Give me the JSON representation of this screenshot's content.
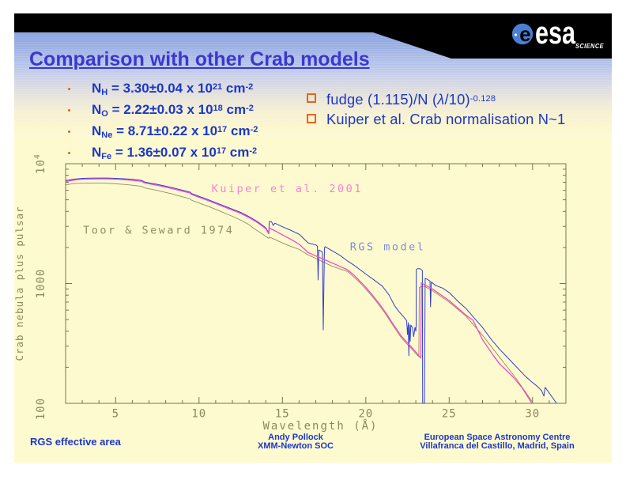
{
  "slide": {
    "title": "Comparison with other Crab models",
    "logo": {
      "wordmark": "esa",
      "globe_letter": "e",
      "tagline": "SCIENCE"
    },
    "bullets": [
      {
        "sym": "N",
        "sub": "H",
        "mid": " = 3.30±0.04 x 10",
        "exp": "21",
        "unit": " cm",
        "uexp": "-2"
      },
      {
        "sym": "N",
        "sub": "O",
        "mid": " = 2.22±0.03 x 10",
        "exp": "18",
        "unit": " cm",
        "uexp": "-2"
      },
      {
        "sym": "N",
        "sub": "Ne",
        "mid": " = 8.71±0.22 x 10",
        "exp": "17",
        "unit": " cm",
        "uexp": "-2"
      },
      {
        "sym": "N",
        "sub": "Fe",
        "mid": " = 1.36±0.07 x 10",
        "exp": "17",
        "unit": " cm",
        "uexp": "-2"
      }
    ],
    "checklist": [
      {
        "pre": "fudge (1.115)/N (",
        "lambda": "λ",
        "post": "/10)",
        "sup": "-0.128"
      },
      {
        "pre": "Kuiper et al. Crab normalisation N~1",
        "lambda": "",
        "post": "",
        "sup": ""
      }
    ],
    "footer": {
      "left": "RGS effective area",
      "center_line1": "Andy Pollock",
      "center_line2": "XMM-Newton SOC",
      "right_line1": "European Space Astronomy Centre",
      "right_line2": "Villafranca del Castillo, Madrid, Spain"
    },
    "colors": {
      "title": "#3b38d0",
      "body_text": "#1c38c6",
      "orange": "#e8651a",
      "cream": "#fefacf",
      "gradient_top": "#8ea7e3",
      "black_band": "#000000"
    }
  },
  "chart_data": {
    "type": "line",
    "title": "",
    "xlabel": "Wavelength (Å)",
    "ylabel": "Crab nebula plus pulsar",
    "x_range": [
      2,
      32
    ],
    "y_range": [
      100,
      10000
    ],
    "y_scale": "log",
    "x_ticks_major": [
      5,
      10,
      15,
      20,
      25,
      30
    ],
    "x_minor_step": 1,
    "y_ticks_major": [
      100,
      1000,
      10000
    ],
    "y_tick_labels": [
      "100",
      "1000",
      "10⁴"
    ],
    "axis_color": "#75754d",
    "text_color": "#8a8a58",
    "legend_position": "inline-labels",
    "grid": false,
    "series": [
      {
        "name": "Toor & Seward 1974",
        "z": 1,
        "color": "#8f8f5f",
        "label_color": "#8f8f5f",
        "label_pos": [
          3.05,
          2600
        ],
        "width": 0.9,
        "points": [
          [
            2.0,
            6650
          ],
          [
            2.5,
            6850
          ],
          [
            3.0,
            6870
          ],
          [
            3.5,
            6900
          ],
          [
            4.0,
            6900
          ],
          [
            4.5,
            6870
          ],
          [
            5.0,
            6800
          ],
          [
            5.5,
            6720
          ],
          [
            6.0,
            6620
          ],
          [
            6.55,
            6480
          ],
          [
            6.75,
            6280
          ],
          [
            7.0,
            6180
          ],
          [
            7.5,
            5980
          ],
          [
            8.0,
            5760
          ],
          [
            8.5,
            5540
          ],
          [
            9.0,
            5300
          ],
          [
            9.45,
            5100
          ],
          [
            9.55,
            4960
          ],
          [
            10.0,
            4700
          ],
          [
            10.5,
            4430
          ],
          [
            11.0,
            4160
          ],
          [
            12.0,
            3640
          ],
          [
            12.5,
            3380
          ],
          [
            13.0,
            3100
          ],
          [
            13.23,
            2920
          ],
          [
            13.5,
            2760
          ],
          [
            14.0,
            2480
          ],
          [
            14.18,
            2380
          ],
          [
            14.22,
            2440
          ],
          [
            14.5,
            2350
          ],
          [
            15.0,
            2180
          ],
          [
            15.5,
            2040
          ],
          [
            16.0,
            1930
          ],
          [
            16.55,
            1730
          ],
          [
            17.0,
            1620
          ],
          [
            17.5,
            1500
          ],
          [
            18.0,
            1390
          ],
          [
            18.91,
            1260
          ],
          [
            19.3,
            1130
          ],
          [
            19.7,
            1000
          ],
          [
            20.0,
            900
          ],
          [
            20.4,
            775
          ],
          [
            20.8,
            660
          ],
          [
            21.2,
            553
          ],
          [
            21.5,
            475
          ],
          [
            21.8,
            412
          ],
          [
            22.1,
            357
          ],
          [
            22.4,
            320
          ],
          [
            22.7,
            290
          ],
          [
            23.0,
            260
          ],
          [
            23.18,
            245
          ],
          [
            23.21,
            930
          ],
          [
            23.5,
            950
          ],
          [
            24.0,
            870
          ],
          [
            25.0,
            700
          ],
          [
            26.0,
            535
          ],
          [
            27.0,
            370
          ],
          [
            28.0,
            245
          ],
          [
            29.0,
            162
          ],
          [
            30.05,
            100
          ]
        ]
      },
      {
        "name": "Kuiper et al. 2001",
        "z": 3,
        "color": "#f846c8",
        "label_color": "#fb80d5",
        "label_pos": [
          10.75,
          5800
        ],
        "width": 1.3,
        "points": [
          [
            2.0,
            7100
          ],
          [
            2.5,
            7300
          ],
          [
            3.0,
            7420
          ],
          [
            3.5,
            7450
          ],
          [
            4.0,
            7460
          ],
          [
            4.5,
            7460
          ],
          [
            5.0,
            7420
          ],
          [
            5.5,
            7360
          ],
          [
            6.0,
            7270
          ],
          [
            6.55,
            7130
          ],
          [
            6.75,
            6900
          ],
          [
            7.0,
            6800
          ],
          [
            7.5,
            6600
          ],
          [
            8.0,
            6380
          ],
          [
            8.5,
            6150
          ],
          [
            9.0,
            5900
          ],
          [
            9.45,
            5700
          ],
          [
            9.55,
            5540
          ],
          [
            10.0,
            5250
          ],
          [
            10.5,
            4950
          ],
          [
            11.0,
            4650
          ],
          [
            12.0,
            4100
          ],
          [
            12.5,
            3850
          ],
          [
            13.0,
            3550
          ],
          [
            13.5,
            3230
          ],
          [
            14.0,
            2870
          ],
          [
            14.18,
            2600
          ],
          [
            14.22,
            2905
          ],
          [
            14.5,
            2780
          ],
          [
            15.0,
            2550
          ],
          [
            15.5,
            2340
          ],
          [
            16.0,
            2130
          ],
          [
            16.55,
            1810
          ],
          [
            17.0,
            1700
          ],
          [
            17.5,
            1590
          ],
          [
            18.0,
            1480
          ],
          [
            18.5,
            1380
          ],
          [
            18.91,
            1300
          ],
          [
            19.3,
            1170
          ],
          [
            19.7,
            1030
          ],
          [
            20.0,
            930
          ],
          [
            20.4,
            800
          ],
          [
            20.8,
            680
          ],
          [
            21.2,
            570
          ],
          [
            21.5,
            490
          ],
          [
            21.8,
            425
          ],
          [
            22.1,
            368
          ],
          [
            22.4,
            330
          ],
          [
            22.7,
            299
          ],
          [
            23.0,
            268
          ],
          [
            23.15,
            252
          ],
          [
            23.3,
            239
          ],
          [
            23.33,
            1013
          ],
          [
            23.5,
            980
          ],
          [
            24.0,
            900
          ],
          [
            25.0,
            720
          ],
          [
            26.0,
            545
          ],
          [
            26.42,
            495
          ],
          [
            27.0,
            340
          ],
          [
            27.64,
            252
          ],
          [
            28.0,
            215
          ],
          [
            28.8,
            168
          ],
          [
            29.37,
            135
          ],
          [
            29.96,
            100
          ]
        ]
      },
      {
        "name": "RGS model",
        "z": 2,
        "color": "#3240cf",
        "label_color": "#7d8cdb",
        "label_pos": [
          19.05,
          1900
        ],
        "width": 1.0,
        "points": [
          [
            2.0,
            7228
          ],
          [
            2.5,
            7431
          ],
          [
            3.0,
            7554
          ],
          [
            3.5,
            7584
          ],
          [
            4.0,
            7594
          ],
          [
            4.5,
            7594
          ],
          [
            5.0,
            7554
          ],
          [
            5.5,
            7492
          ],
          [
            6.0,
            7401
          ],
          [
            6.55,
            7258
          ],
          [
            6.75,
            7024
          ],
          [
            7.0,
            6922
          ],
          [
            7.5,
            6719
          ],
          [
            8.0,
            6495
          ],
          [
            8.5,
            6261
          ],
          [
            9.0,
            6006
          ],
          [
            9.45,
            5803
          ],
          [
            9.55,
            5640
          ],
          [
            10.0,
            5344
          ],
          [
            10.5,
            5039
          ],
          [
            11.0,
            4734
          ],
          [
            12.0,
            4174
          ],
          [
            12.5,
            3919
          ],
          [
            13.0,
            3614
          ],
          [
            13.5,
            3288
          ],
          [
            14.0,
            2922
          ],
          [
            14.18,
            2647
          ],
          [
            14.22,
            3300
          ],
          [
            14.35,
            3280
          ],
          [
            14.45,
            3050
          ],
          [
            14.55,
            3190
          ],
          [
            15.0,
            2980
          ],
          [
            15.5,
            2780
          ],
          [
            16.0,
            2580
          ],
          [
            16.55,
            2180
          ],
          [
            17.0,
            2100
          ],
          [
            17.1,
            2050
          ],
          [
            17.14,
            1070
          ],
          [
            17.18,
            1900
          ],
          [
            17.3,
            1870
          ],
          [
            17.4,
            1830
          ],
          [
            17.45,
            410
          ],
          [
            17.52,
            1980
          ],
          [
            17.56,
            2030
          ],
          [
            18.0,
            1870
          ],
          [
            18.5,
            1700
          ],
          [
            18.91,
            1540
          ],
          [
            19.3,
            1420
          ],
          [
            19.7,
            1290
          ],
          [
            20.0,
            1200
          ],
          [
            20.5,
            1070
          ],
          [
            21.0,
            947
          ],
          [
            21.4,
            800
          ],
          [
            21.72,
            655
          ],
          [
            22.0,
            580
          ],
          [
            22.2,
            540
          ],
          [
            22.4,
            500
          ],
          [
            22.45,
            490
          ],
          [
            22.5,
            375
          ],
          [
            22.55,
            470
          ],
          [
            22.58,
            250
          ],
          [
            22.62,
            450
          ],
          [
            22.66,
            330
          ],
          [
            22.7,
            450
          ],
          [
            22.8,
            430
          ],
          [
            22.87,
            360
          ],
          [
            22.95,
            430
          ],
          [
            23.0,
            400
          ],
          [
            23.02,
            448
          ],
          [
            23.03,
            1310
          ],
          [
            23.1,
            1330
          ],
          [
            23.25,
            1330
          ],
          [
            23.35,
            1300
          ],
          [
            23.39,
            1280
          ],
          [
            23.41,
            100
          ],
          [
            23.52,
            100
          ],
          [
            23.56,
            1105
          ],
          [
            23.6,
            1100
          ],
          [
            23.7,
            1080
          ],
          [
            23.85,
            1050
          ],
          [
            23.88,
            640
          ],
          [
            23.93,
            1030
          ],
          [
            24.2,
            960
          ],
          [
            24.61,
            915
          ],
          [
            25.0,
            840
          ],
          [
            25.56,
            704
          ],
          [
            26.0,
            620
          ],
          [
            26.52,
            512
          ],
          [
            27.0,
            430
          ],
          [
            27.5,
            345
          ],
          [
            28.0,
            285
          ],
          [
            28.8,
            218
          ],
          [
            29.5,
            172
          ],
          [
            29.9,
            153
          ],
          [
            30.3,
            138
          ],
          [
            30.55,
            127
          ],
          [
            30.68,
            115
          ],
          [
            30.75,
            136
          ],
          [
            31.0,
            122
          ],
          [
            31.44,
            100
          ]
        ]
      }
    ]
  }
}
